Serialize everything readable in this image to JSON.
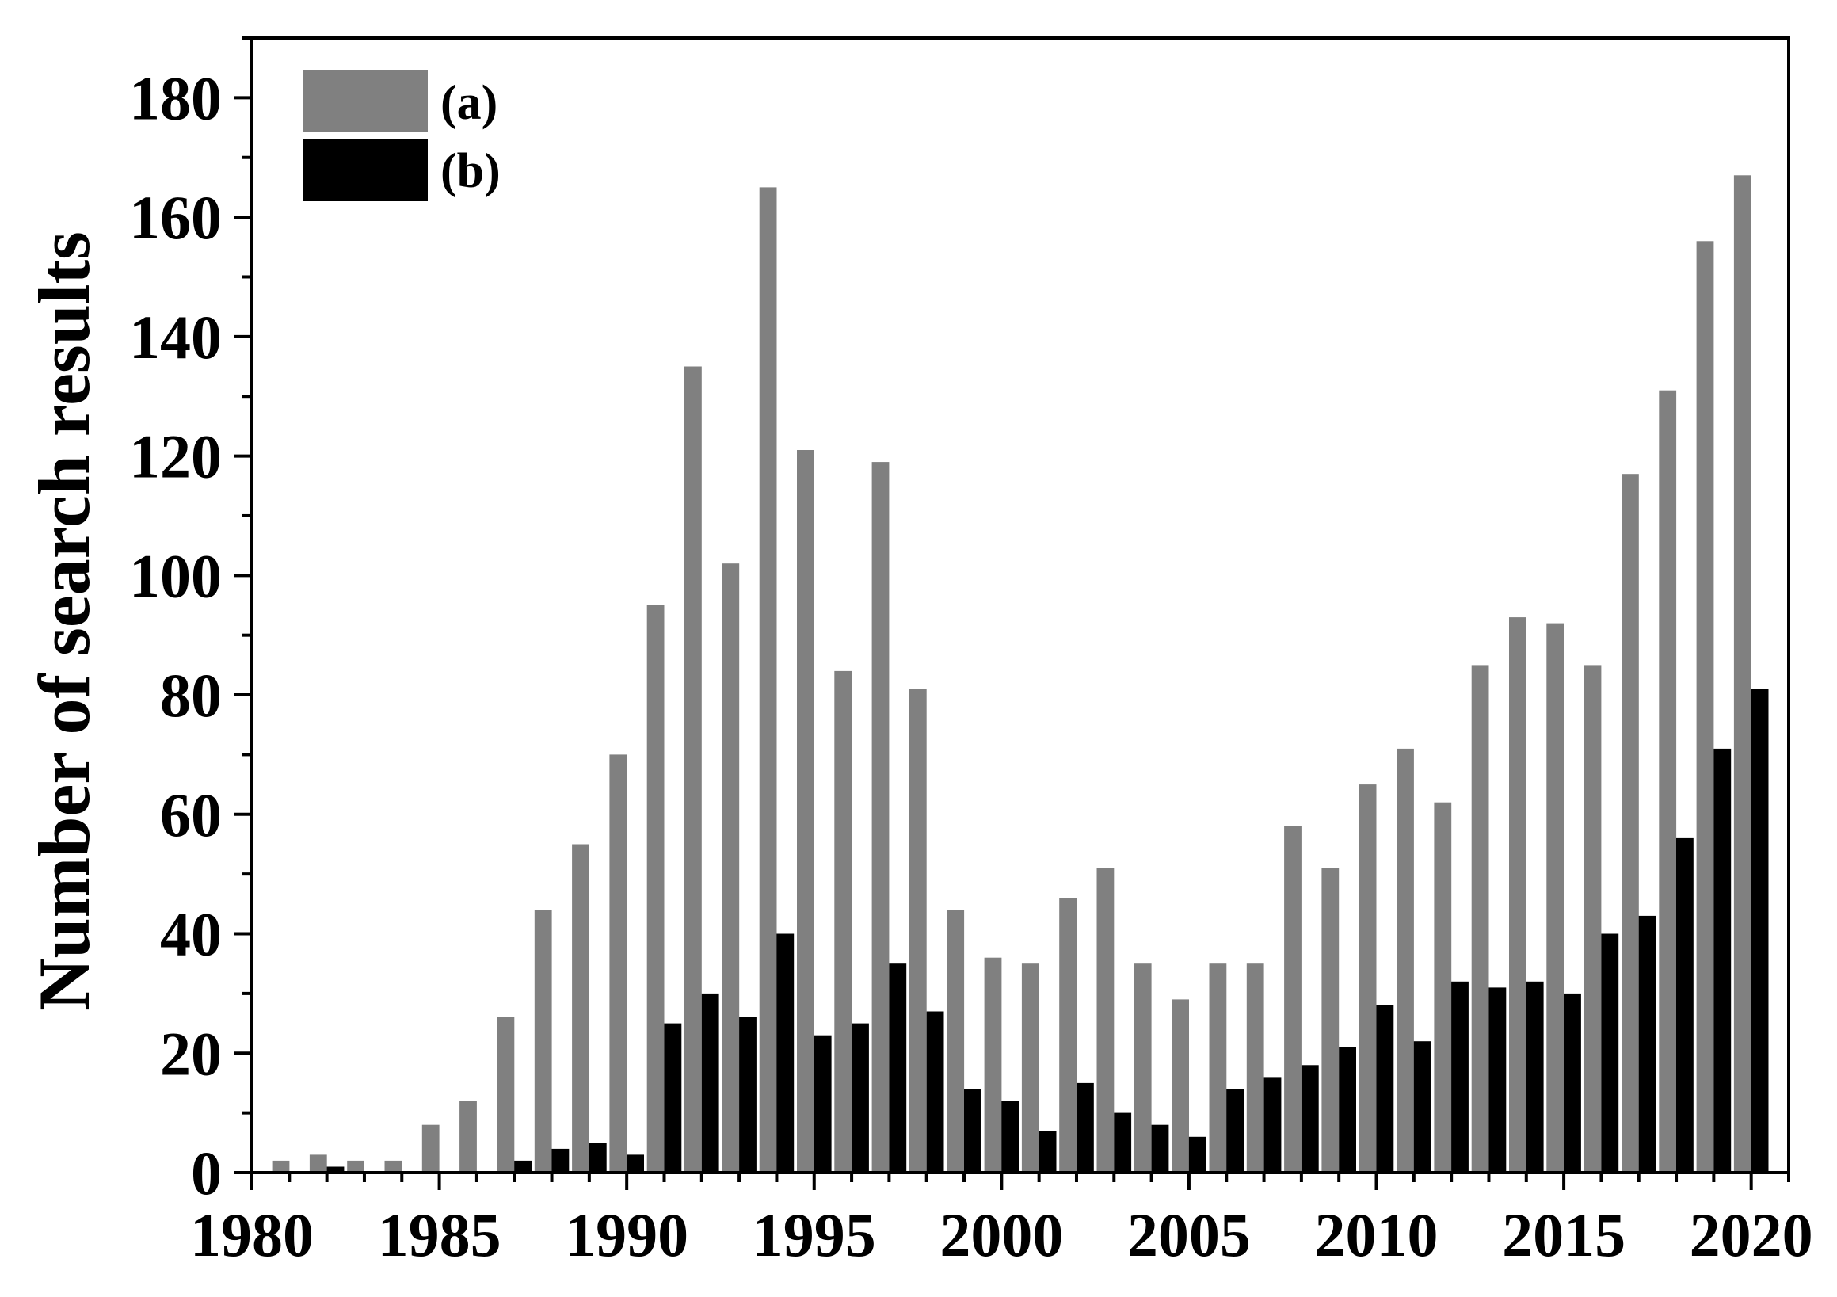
{
  "chart_data": {
    "type": "bar",
    "xlabel": "",
    "ylabel": "Number of search results",
    "x": [
      1981,
      1982,
      1983,
      1984,
      1985,
      1986,
      1987,
      1988,
      1989,
      1990,
      1991,
      1992,
      1993,
      1994,
      1995,
      1996,
      1997,
      1998,
      1999,
      2000,
      2001,
      2002,
      2003,
      2004,
      2005,
      2006,
      2007,
      2008,
      2009,
      2010,
      2011,
      2012,
      2013,
      2014,
      2015,
      2016,
      2017,
      2018,
      2019,
      2020
    ],
    "xlim": [
      1980,
      2021
    ],
    "ylim": [
      0,
      190
    ],
    "xticks": [
      "1980",
      "1985",
      "1990",
      "1995",
      "2000",
      "2005",
      "2010",
      "2015",
      "2020"
    ],
    "yticks": [
      "0",
      "20",
      "40",
      "60",
      "80",
      "100",
      "120",
      "140",
      "160",
      "180"
    ],
    "series": [
      {
        "name": "(a)",
        "color": "#808080",
        "values": [
          2,
          3,
          2,
          2,
          8,
          12,
          26,
          44,
          55,
          70,
          95,
          135,
          102,
          165,
          121,
          84,
          119,
          81,
          44,
          36,
          35,
          46,
          51,
          35,
          29,
          35,
          35,
          58,
          51,
          65,
          71,
          62,
          85,
          93,
          92,
          85,
          117,
          131,
          156,
          167
        ]
      },
      {
        "name": "(b)",
        "color": "#000000",
        "values": [
          0,
          1,
          0,
          0,
          0,
          0,
          2,
          4,
          5,
          3,
          25,
          30,
          26,
          40,
          23,
          25,
          35,
          27,
          14,
          12,
          7,
          15,
          10,
          8,
          6,
          14,
          16,
          18,
          21,
          28,
          22,
          32,
          31,
          32,
          30,
          40,
          43,
          56,
          71,
          81
        ]
      }
    ],
    "legend_position": "top-left",
    "grid": false
  }
}
